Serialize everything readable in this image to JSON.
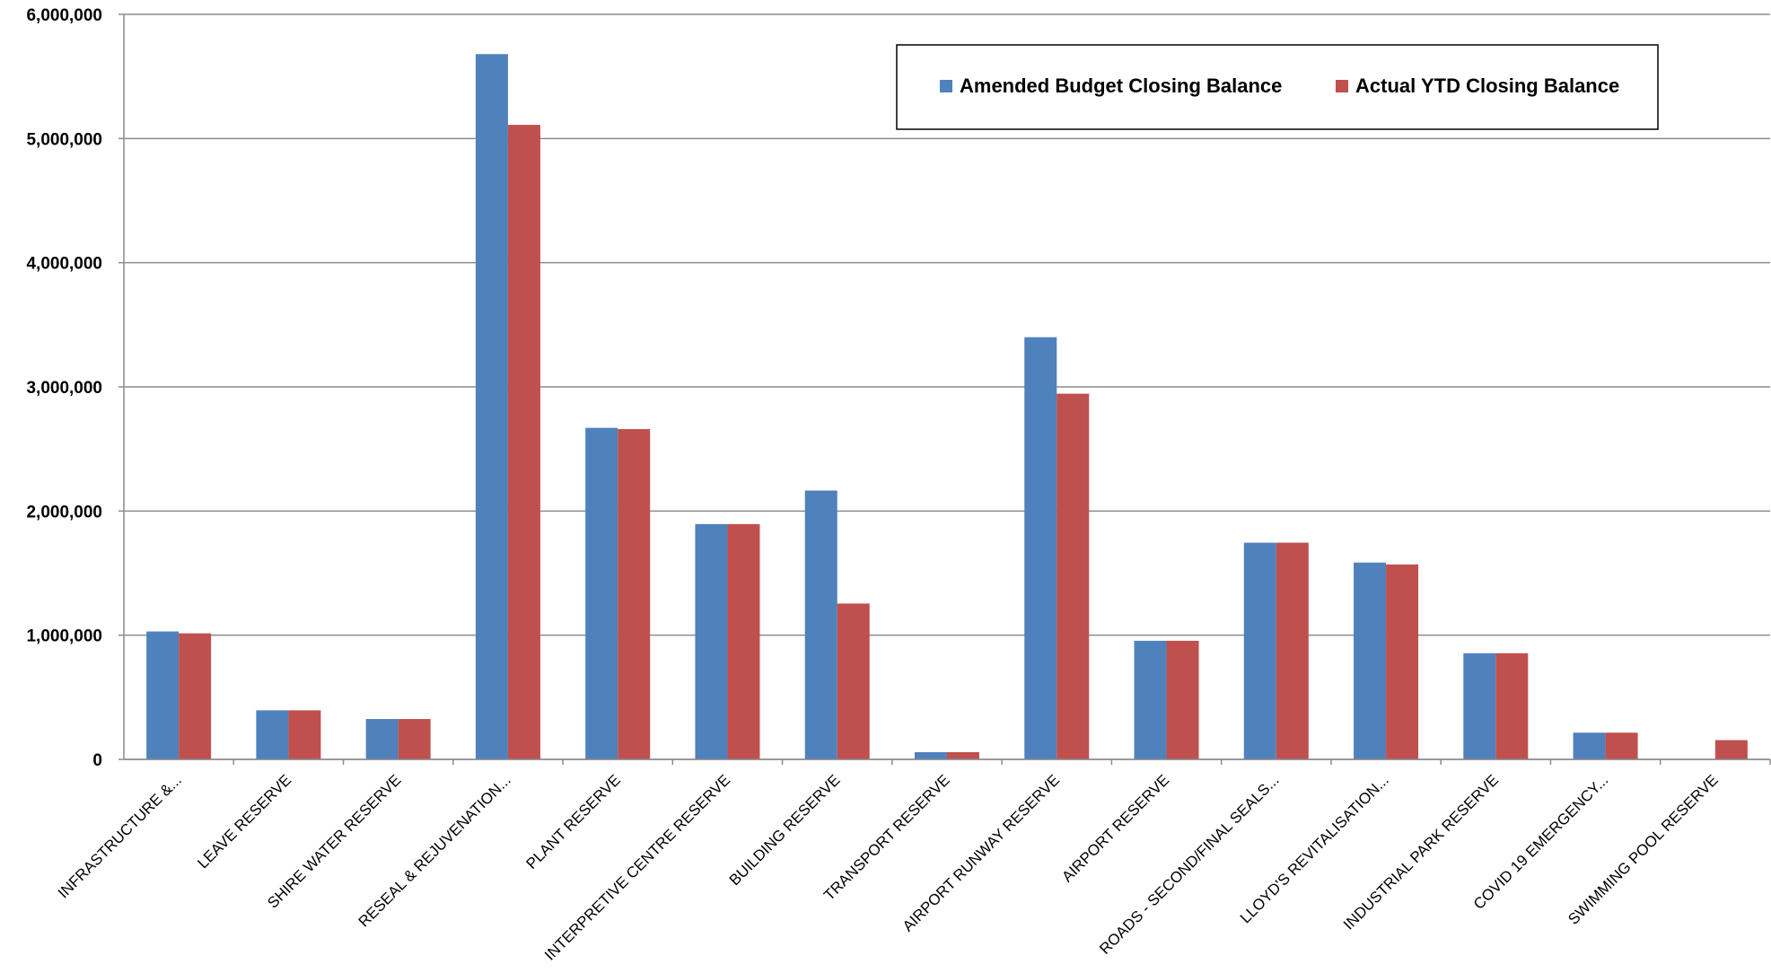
{
  "chart_data": {
    "type": "bar",
    "categories": [
      "INFRASTRUCTURE &...",
      "LEAVE RESERVE",
      "SHIRE WATER RESERVE",
      "RESEAL & REJUVENATION...",
      "PLANT RESERVE",
      "INTERPRETIVE CENTRE RESERVE",
      "BUILDING RESERVE",
      "TRANSPORT RESERVE",
      "AIRPORT RUNWAY RESERVE",
      "AIRPORT RESERVE",
      "ROADS - SECOND/FINAL SEALS...",
      "LLOYD'S REVITALISATION...",
      "INDUSTRIAL PARK RESERVE",
      "COVID 19 EMERGENCY...",
      "SWIMMING POOL RESERVE"
    ],
    "series": [
      {
        "name": "Amended Budget Closing Balance",
        "color": "#4F81BD",
        "values": [
          1030000,
          395000,
          325000,
          5680000,
          2670000,
          1895000,
          2165000,
          58000,
          3400000,
          955000,
          1745000,
          1585000,
          855000,
          215000,
          0
        ]
      },
      {
        "name": "Actual YTD Closing Balance",
        "color": "#C0504D",
        "values": [
          1015000,
          395000,
          325000,
          5110000,
          2660000,
          1895000,
          1255000,
          58000,
          2945000,
          955000,
          1745000,
          1570000,
          855000,
          215000,
          155000
        ]
      }
    ],
    "y_ticks": [
      "0",
      "1,000,000",
      "2,000,000",
      "3,000,000",
      "4,000,000",
      "5,000,000",
      "6,000,000"
    ],
    "ylim": [
      0,
      6000000
    ],
    "grid": true,
    "legend_position": "top-right",
    "gridline_color": "#8C8C8C",
    "axis_color": "#8C8C8C"
  }
}
